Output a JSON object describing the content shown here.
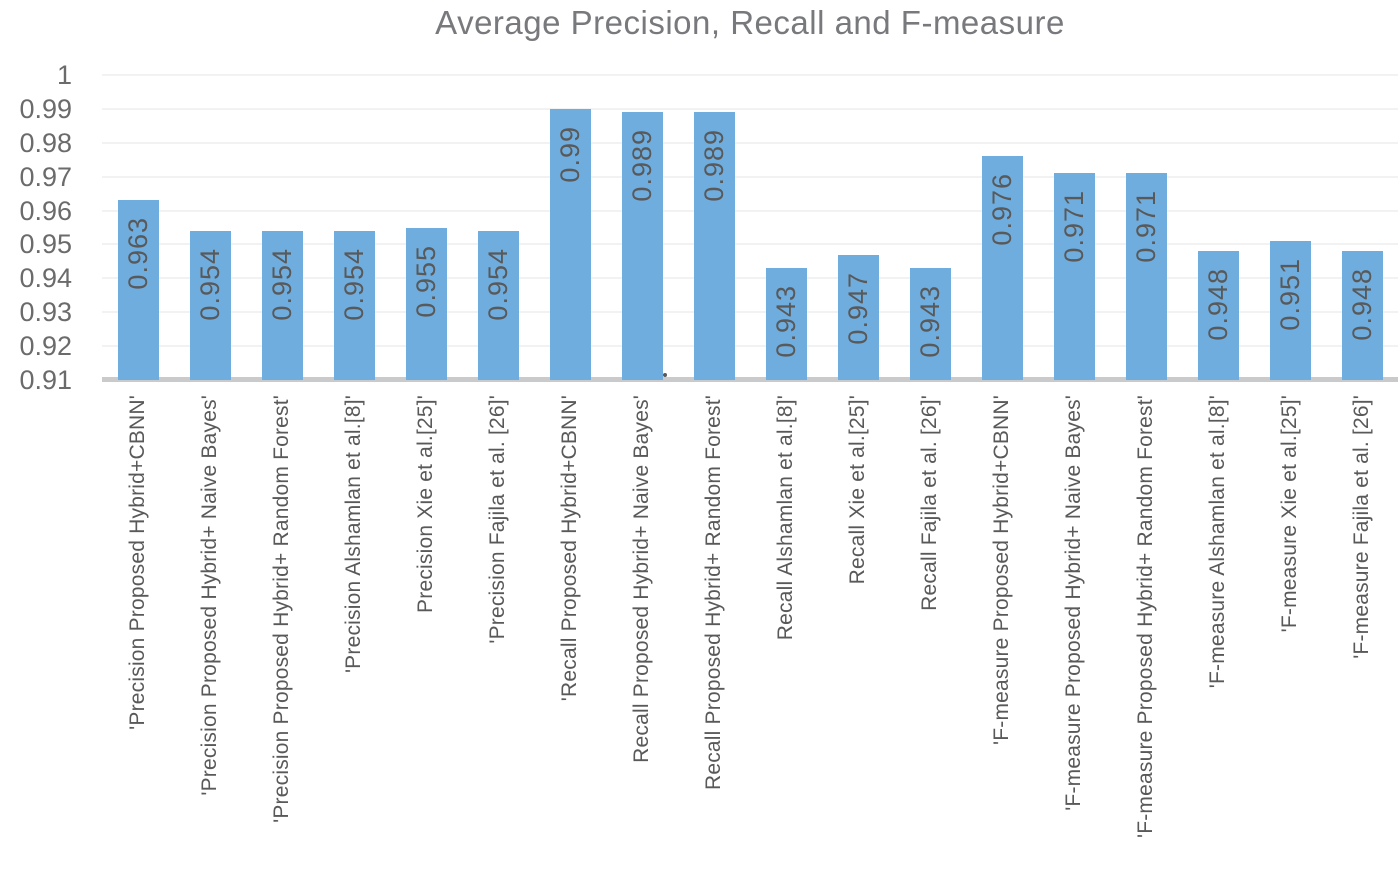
{
  "chart_data": {
    "type": "bar",
    "title": "Average Precision, Recall and F-measure",
    "categories": [
      "'Precision Proposed Hybrid+CBNN'",
      "'Precision Proposed Hybrid+ Naive Bayes'",
      "'Precision Proposed Hybrid+ Random Forest'",
      "'Precision Alshamlan et al.[8]'",
      "Precision Xie et al.[25]'",
      "'Precision Fajila et al. [26]'",
      "'Recall Proposed Hybrid+CBNN'",
      "Recall Proposed Hybrid+ Naive Bayes'",
      "Recall Proposed Hybrid+ Random Forest'",
      "Recall Alshamlan et al.[8]'",
      "Recall Xie et al.[25]'",
      "Recall Fajila et al. [26]'",
      "'F-measure Proposed Hybrid+CBNN'",
      "'F-measure Proposed Hybrid+ Naive Bayes'",
      "'F-measure Proposed Hybrid+ Random Forest'",
      "'F-measure Alshamlan et al.[8]'",
      "'F-measure Xie et al.[25]'",
      "'F-measure Fajila et al. [26]'"
    ],
    "values": [
      0.963,
      0.954,
      0.954,
      0.954,
      0.955,
      0.954,
      0.99,
      0.989,
      0.989,
      0.943,
      0.947,
      0.943,
      0.976,
      0.971,
      0.971,
      0.948,
      0.951,
      0.948
    ],
    "values_display": [
      "0.963",
      "0.954",
      "0.954",
      "0.954",
      "0.955",
      "0.954",
      "0.99",
      "0.989",
      "0.989",
      "0.943",
      "0.947",
      "0.943",
      "0.976",
      "0.971",
      "0.971",
      "0.948",
      "0.951",
      "0.948"
    ],
    "y_ticks": [
      "1",
      "0.99",
      "0.98",
      "0.97",
      "0.96",
      "0.95",
      "0.94",
      "0.93",
      "0.92",
      "0.91"
    ],
    "y_tick_values": [
      1,
      0.99,
      0.98,
      0.97,
      0.96,
      0.95,
      0.94,
      0.93,
      0.92,
      0.91
    ],
    "ylim": [
      0.91,
      1.0
    ],
    "grid": true,
    "legend": "none",
    "xlabel": "",
    "ylabel": "",
    "colors": {
      "bar": "#6FADDF",
      "title_text": "#78797C",
      "y_tick_text": "#6B6B6B",
      "category_text": "#595959",
      "value_label_text": "#595959",
      "gridline": "#F2F2F2",
      "axis_line": "#C9CACB",
      "stray_dot": "#595959"
    }
  }
}
